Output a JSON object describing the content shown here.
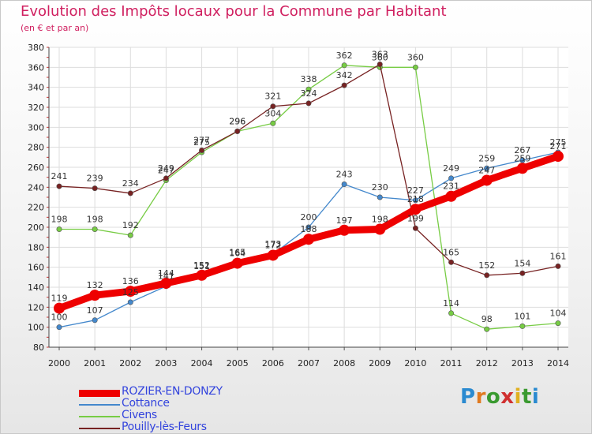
{
  "title": "Evolution des Impôts locaux pour la Commune par Habitant",
  "subtitle": "(en € et par an)",
  "brand": "Proxiti",
  "chart_data": {
    "type": "line",
    "title": "Evolution des Impôts locaux pour la Commune par Habitant",
    "subtitle": "(en € et par an)",
    "xlabel": "",
    "ylabel": "",
    "categories": [
      "2000",
      "2001",
      "2002",
      "2003",
      "2004",
      "2005",
      "2006",
      "2007",
      "2008",
      "2009",
      "2010",
      "2011",
      "2012",
      "2013",
      "2014"
    ],
    "ylim": [
      80,
      380
    ],
    "yticks": [
      80,
      100,
      120,
      140,
      160,
      180,
      200,
      220,
      240,
      260,
      280,
      300,
      320,
      340,
      360,
      380
    ],
    "grid": true,
    "legend_position": "bottom-left",
    "series": [
      {
        "name": "ROZIER-EN-DONZY",
        "color": "#ee0000",
        "emphasis": true,
        "values": [
          119,
          132,
          136,
          144,
          152,
          164,
          172,
          188,
          197,
          198,
          218,
          231,
          247,
          259,
          271
        ],
        "labels": [
          "119",
          "132",
          "136",
          "144",
          "152",
          "164",
          "172",
          "188",
          "197",
          "198",
          "218",
          "231",
          "247",
          "259",
          "271"
        ]
      },
      {
        "name": "Cottance",
        "color": "#4488cc",
        "values": [
          100,
          107,
          125,
          141,
          151,
          165,
          173,
          200,
          243,
          230,
          227,
          249,
          259,
          267,
          275
        ],
        "labels": [
          "100",
          "107",
          "125",
          "141",
          "151",
          "165",
          "173",
          "200",
          "243",
          "230",
          "227",
          "249",
          "259",
          "267",
          "275"
        ]
      },
      {
        "name": "Civens",
        "color": "#77cc44",
        "values": [
          198,
          198,
          192,
          247,
          275,
          296,
          304,
          338,
          362,
          360,
          360,
          114,
          98,
          101,
          104
        ],
        "labels": [
          "198",
          "198",
          "192",
          "247",
          "275",
          "296",
          "304",
          "338",
          "362",
          "360",
          "360",
          "114",
          "98",
          "101",
          "104"
        ]
      },
      {
        "name": "Pouilly-lès-Feurs",
        "color": "#772222",
        "values": [
          241,
          239,
          234,
          249,
          277,
          296,
          321,
          324,
          342,
          363,
          199,
          165,
          152,
          154,
          161
        ],
        "labels": [
          "241",
          "239",
          "234",
          "249",
          "277",
          "296",
          "321",
          "324",
          "342",
          "363",
          "199",
          "165",
          "152",
          "154",
          "161"
        ]
      }
    ]
  }
}
